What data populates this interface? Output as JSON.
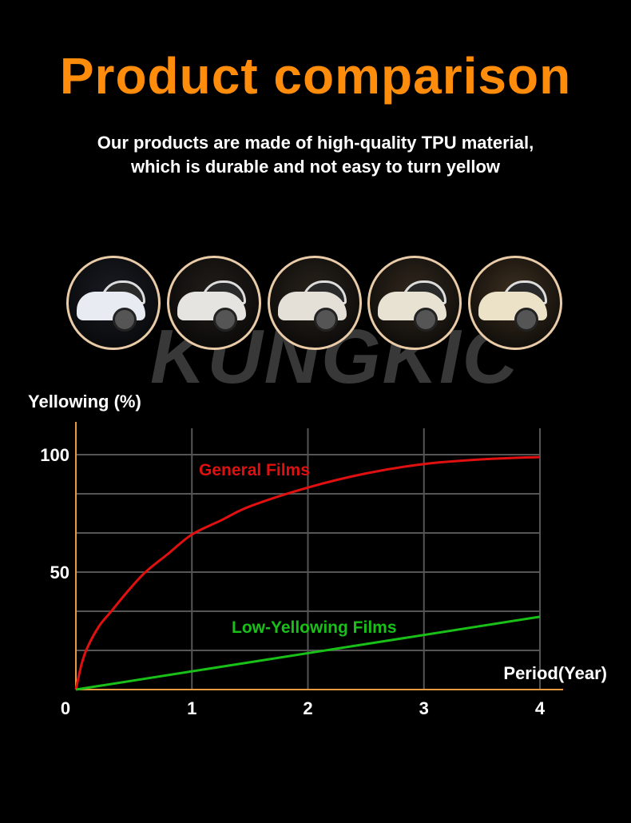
{
  "header": {
    "title": "Product comparison",
    "subtitle_line1": "Our products are made of high-quality TPU material,",
    "subtitle_line2": "which is durable and not easy to turn yellow"
  },
  "watermark": "KUNGKIC",
  "car_images": [
    {
      "tint": "#1a1c24",
      "car": "#e8ecf2"
    },
    {
      "tint": "#231e1a",
      "car": "#e6e4e0"
    },
    {
      "tint": "#2a231c",
      "car": "#e4e0d8"
    },
    {
      "tint": "#33291e",
      "car": "#e8e2d2"
    },
    {
      "tint": "#3e3020",
      "car": "#ece2c8"
    }
  ],
  "colors": {
    "accent": "#ff8c0a",
    "axis": "#e89a40",
    "grid": "#555555",
    "general": "#e01010",
    "low": "#18c018"
  },
  "chart_data": {
    "type": "line",
    "ylabel": "Yellowing (%)",
    "xlabel": "Period(Year)",
    "xlim": [
      0,
      4
    ],
    "ylim": [
      0,
      100
    ],
    "x_ticks": [
      "0",
      "1",
      "2",
      "3",
      "4"
    ],
    "y_ticks": [
      "50",
      "100"
    ],
    "grid": true,
    "series": [
      {
        "name": "General Films",
        "color": "#e01010",
        "x": [
          0,
          0.05,
          0.1,
          0.2,
          0.3,
          0.45,
          0.6,
          0.8,
          1,
          1.25,
          1.5,
          2,
          2.5,
          3,
          3.5,
          4
        ],
        "y": [
          0,
          11,
          18,
          27,
          33,
          42,
          50,
          58,
          66,
          72,
          78,
          86,
          92,
          96,
          98,
          99
        ]
      },
      {
        "name": "Low-Yellowing Films",
        "color": "#18c018",
        "x": [
          0,
          4
        ],
        "y": [
          0,
          31
        ]
      }
    ]
  }
}
